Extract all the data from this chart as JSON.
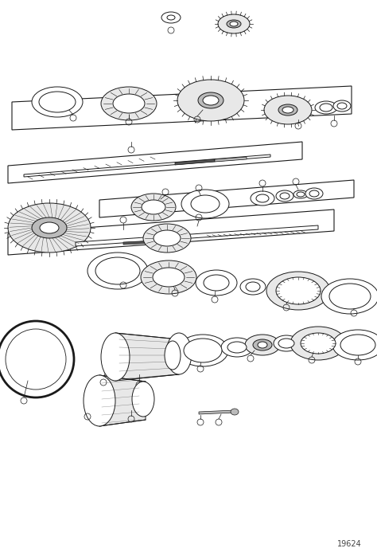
{
  "background_color": "#ffffff",
  "line_color": "#1a1a1a",
  "fill_white": "#ffffff",
  "fill_light": "#e8e8e8",
  "fill_dark": "#555555",
  "fill_mid": "#bbbbbb",
  "figsize": [
    4.74,
    6.98
  ],
  "dpi": 100,
  "watermark": "19624"
}
